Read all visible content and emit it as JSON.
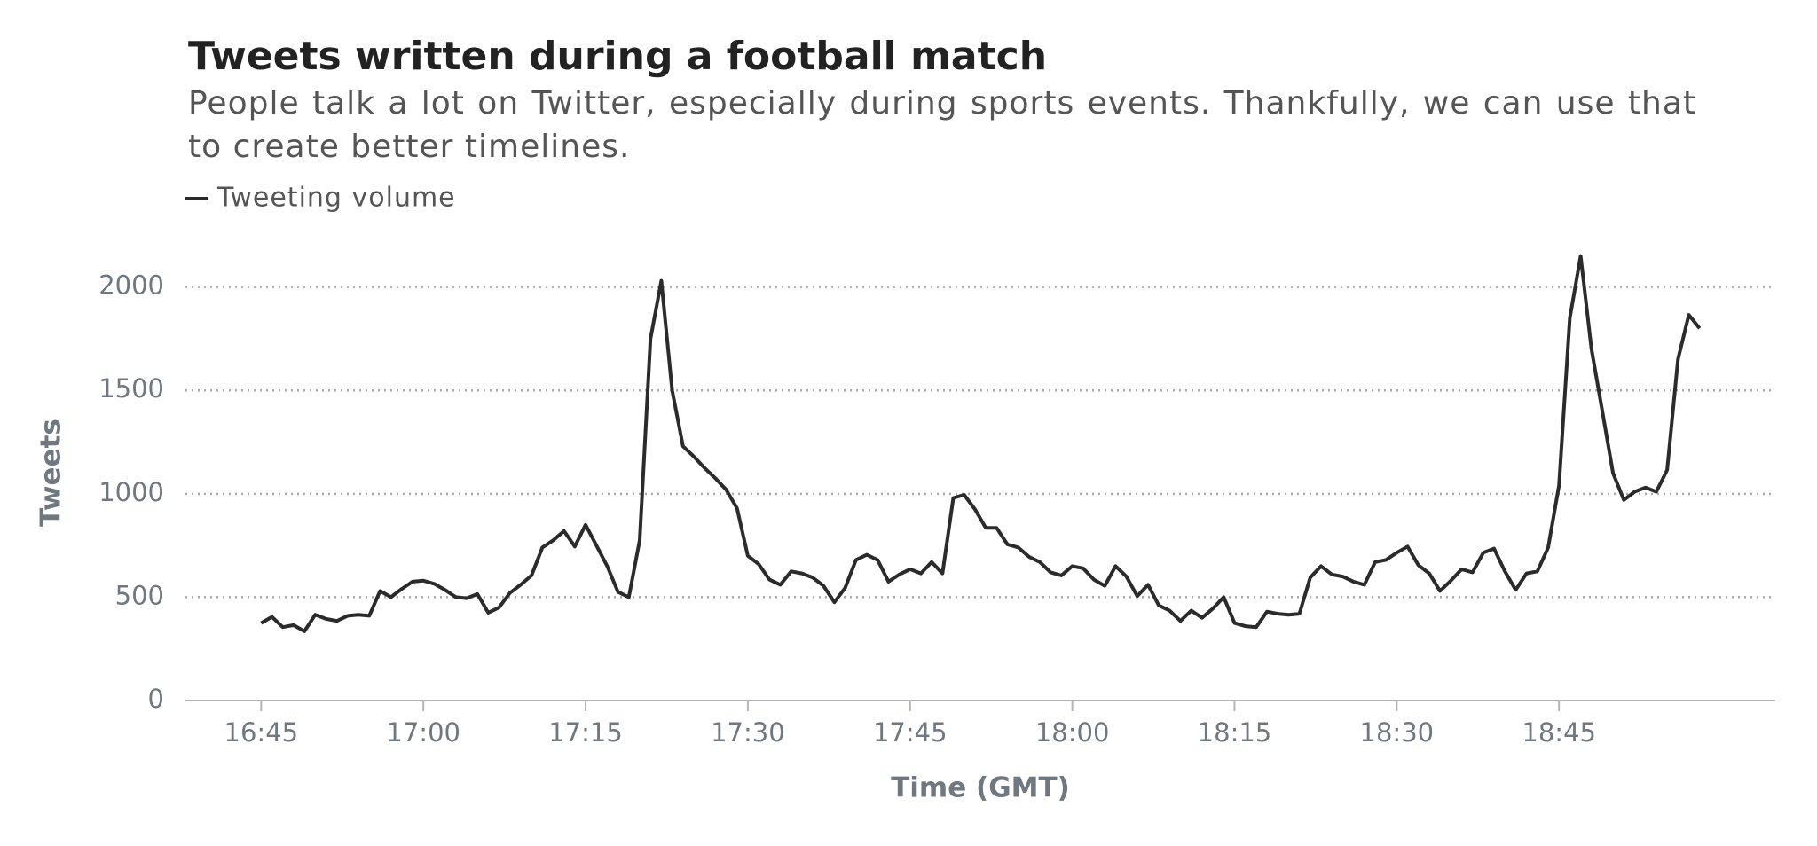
{
  "chart_data": {
    "type": "line",
    "title": "Tweets written during a football match",
    "subtitle": "People talk a lot on Twitter, especially during sports events. Thankfully, we can use that to create better timelines.",
    "x_label": "Time (GMT)",
    "y_label": "Tweets",
    "x": [
      "16:45",
      "16:46",
      "16:47",
      "16:48",
      "16:49",
      "16:50",
      "16:51",
      "16:52",
      "16:53",
      "16:54",
      "16:55",
      "16:56",
      "16:57",
      "16:58",
      "16:59",
      "17:00",
      "17:01",
      "17:02",
      "17:03",
      "17:04",
      "17:05",
      "17:06",
      "17:07",
      "17:08",
      "17:09",
      "17:10",
      "17:11",
      "17:12",
      "17:13",
      "17:14",
      "17:15",
      "17:16",
      "17:17",
      "17:18",
      "17:19",
      "17:20",
      "17:21",
      "17:22",
      "17:23",
      "17:24",
      "17:25",
      "17:26",
      "17:27",
      "17:28",
      "17:29",
      "17:30",
      "17:31",
      "17:32",
      "17:33",
      "17:34",
      "17:35",
      "17:36",
      "17:37",
      "17:38",
      "17:39",
      "17:40",
      "17:41",
      "17:42",
      "17:43",
      "17:44",
      "17:45",
      "17:46",
      "17:47",
      "17:48",
      "17:49",
      "17:50",
      "17:51",
      "17:52",
      "17:53",
      "17:54",
      "17:55",
      "17:56",
      "17:57",
      "17:58",
      "17:59",
      "18:00",
      "18:01",
      "18:02",
      "18:03",
      "18:04",
      "18:05",
      "18:06",
      "18:07",
      "18:08",
      "18:09",
      "18:10",
      "18:11",
      "18:12",
      "18:13",
      "18:14",
      "18:15",
      "18:16",
      "18:17",
      "18:18",
      "18:19",
      "18:20",
      "18:21",
      "18:22",
      "18:23",
      "18:24",
      "18:25",
      "18:26",
      "18:27",
      "18:28",
      "18:29",
      "18:30",
      "18:31",
      "18:32",
      "18:33",
      "18:34",
      "18:35",
      "18:36",
      "18:37",
      "18:38",
      "18:39",
      "18:40",
      "18:41",
      "18:42",
      "18:43",
      "18:44",
      "18:45",
      "18:46",
      "18:47",
      "18:48",
      "18:49",
      "18:50",
      "18:51",
      "18:52",
      "18:53",
      "18:54",
      "18:55",
      "18:56",
      "18:57",
      "18:58"
    ],
    "series": [
      {
        "name": "Tweeting volume",
        "color": "#2b2b2b",
        "values": [
          375,
          405,
          355,
          365,
          335,
          415,
          395,
          385,
          410,
          415,
          410,
          530,
          500,
          540,
          575,
          580,
          565,
          535,
          500,
          495,
          515,
          425,
          450,
          520,
          560,
          605,
          740,
          775,
          820,
          745,
          850,
          750,
          650,
          525,
          500,
          775,
          1750,
          2030,
          1500,
          1230,
          1180,
          1125,
          1075,
          1020,
          930,
          700,
          660,
          585,
          560,
          625,
          615,
          595,
          555,
          475,
          545,
          680,
          705,
          680,
          575,
          610,
          635,
          615,
          670,
          615,
          980,
          995,
          925,
          835,
          835,
          755,
          740,
          695,
          670,
          620,
          605,
          650,
          640,
          585,
          555,
          650,
          600,
          505,
          560,
          460,
          435,
          385,
          435,
          400,
          445,
          500,
          375,
          360,
          355,
          430,
          420,
          415,
          420,
          595,
          650,
          610,
          600,
          575,
          560,
          670,
          680,
          715,
          745,
          655,
          615,
          530,
          580,
          635,
          620,
          715,
          735,
          625,
          535,
          615,
          625,
          740,
          1040,
          1850,
          2150,
          1700,
          1400,
          1100,
          970,
          1010,
          1030,
          1010,
          1115,
          1650,
          1865,
          1800
        ]
      }
    ],
    "xlim": [
      "16:38",
      "19:05"
    ],
    "xticks": [
      "16:45",
      "17:00",
      "17:15",
      "17:30",
      "17:45",
      "18:00",
      "18:15",
      "18:30",
      "18:45"
    ],
    "ylim": [
      0,
      2200
    ],
    "yticks": [
      0,
      500,
      1000,
      1500,
      2000
    ],
    "grid": true
  }
}
